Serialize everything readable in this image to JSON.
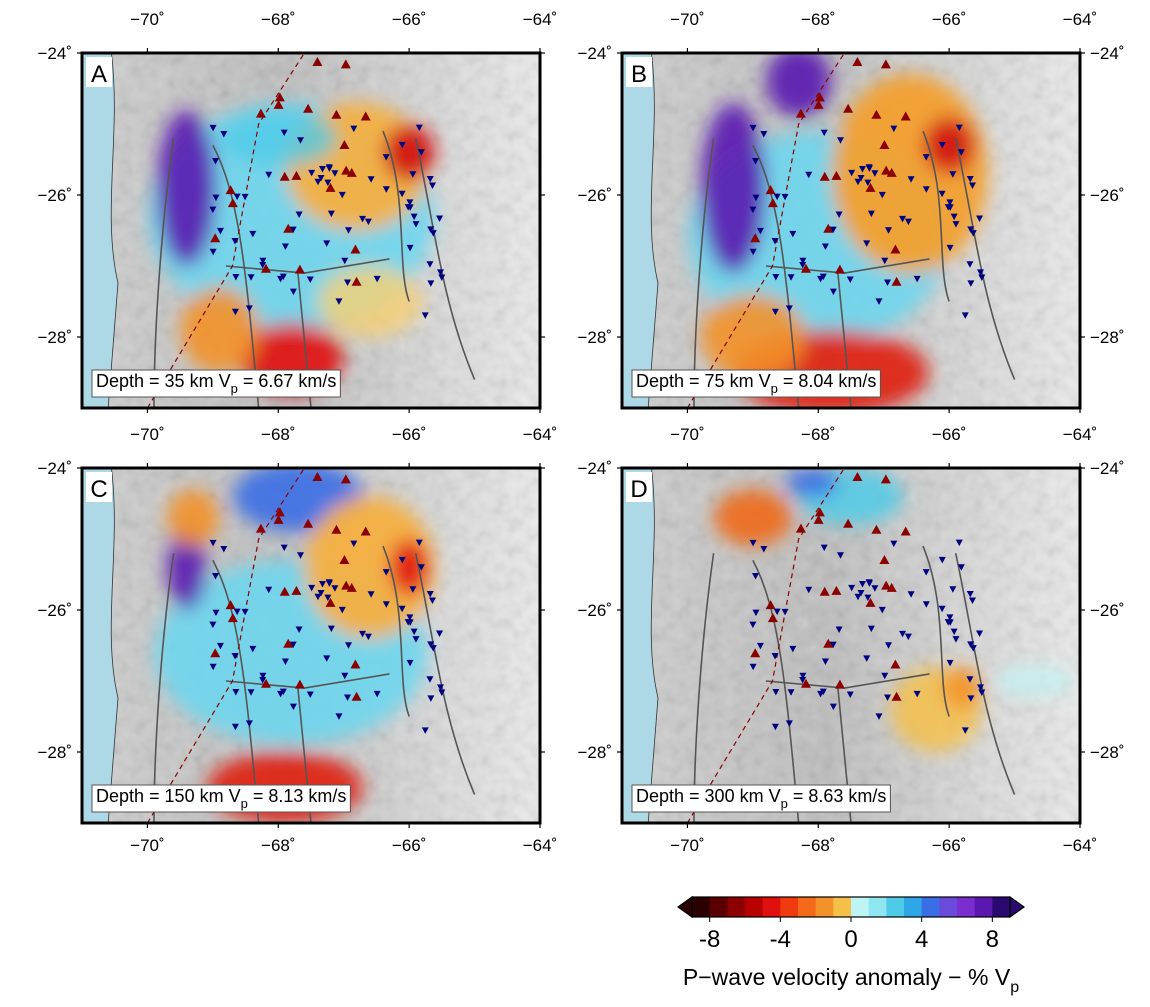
{
  "map_extent": {
    "lon_range": [
      -71,
      -64
    ],
    "lat_range": [
      -24,
      -29
    ]
  },
  "lon_ticks": [
    {
      "value": -70,
      "label": "−70˚"
    },
    {
      "value": -68,
      "label": "−68˚"
    },
    {
      "value": -66,
      "label": "−66˚"
    },
    {
      "value": -64,
      "label": "−64˚"
    }
  ],
  "lat_ticks": [
    {
      "value": -24,
      "label": "−24˚"
    },
    {
      "value": -26,
      "label": "−26˚"
    },
    {
      "value": -28,
      "label": "−28˚"
    }
  ],
  "panels": [
    {
      "letter": "A",
      "label_main": "Depth = 35 km V",
      "label_sub": "p",
      "label_tail": " = 6.67 km/s"
    },
    {
      "letter": "B",
      "label_main": "Depth = 75 km V",
      "label_sub": "p",
      "label_tail": " = 8.04 km/s"
    },
    {
      "letter": "C",
      "label_main": "Depth = 150 km V",
      "label_sub": "p",
      "label_tail": " = 8.13 km/s"
    },
    {
      "letter": "D",
      "label_main": "Depth = 300 km V",
      "label_sub": "p",
      "label_tail": " = 8.63 km/s"
    }
  ],
  "colorbar": {
    "range": [
      -9,
      9
    ],
    "ticks": [
      -8,
      -4,
      0,
      4,
      8
    ],
    "colors": [
      "#2a0000",
      "#5a0000",
      "#8b0000",
      "#b80000",
      "#e01010",
      "#f03a10",
      "#f26a1a",
      "#f3922a",
      "#f5c04a",
      "#bff4f4",
      "#8fe6f0",
      "#4fcbe8",
      "#2fa6e6",
      "#3a6ee6",
      "#6a4ad8",
      "#7a2ed0",
      "#5a18b0",
      "#2a0a70"
    ],
    "label_main": "P−wave velocity anomaly − % V",
    "label_sub": "p"
  }
}
